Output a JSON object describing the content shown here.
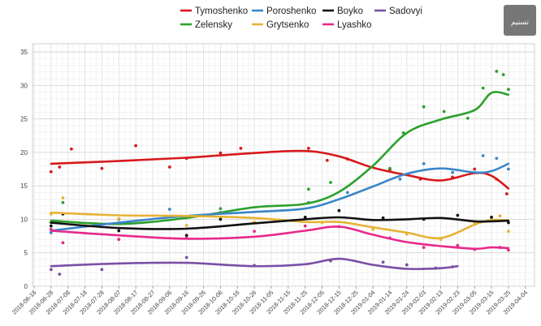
{
  "chart_data": {
    "type": "line",
    "title": "",
    "xlabel": "",
    "ylabel": "",
    "ylim": [
      0,
      35
    ],
    "yticks": [
      0,
      5,
      10,
      15,
      20,
      25,
      30,
      35
    ],
    "grid": true,
    "legend_position": "top",
    "x_tick_labels": [
      "2018-06-18",
      "2018-06-28",
      "2018-07-08",
      "2018-07-18",
      "2018-07-28",
      "2018-08-07",
      "2018-08-17",
      "2018-08-27",
      "2018-09-06",
      "2018-09-16",
      "2018-09-26",
      "2018-10-06",
      "2018-10-16",
      "2018-10-26",
      "2018-11-05",
      "2018-11-15",
      "2018-11-25",
      "2018-12-05",
      "2018-12-15",
      "2018-12-25",
      "2019-01-04",
      "2019-01-14",
      "2019-01-24",
      "2019-02-03",
      "2019-02-13",
      "2019-02-23",
      "2019-03-05",
      "2019-03-15",
      "2019-03-25",
      "2019-04-04"
    ],
    "series": [
      {
        "name": "Tymoshenko",
        "color": "#d7191c",
        "x": [
          "2018-06-28",
          "2018-08-07",
          "2018-09-16",
          "2018-10-26",
          "2018-11-25",
          "2018-12-15",
          "2019-01-04",
          "2019-01-24",
          "2019-02-13",
          "2019-03-05",
          "2019-03-15",
          "2019-03-25"
        ],
        "y": [
          18.3,
          18.7,
          19.2,
          19.9,
          20.2,
          19.4,
          17.7,
          16.6,
          15.8,
          16.9,
          16.5,
          14.6
        ],
        "points": [
          [
            "2018-06-28",
            17.1
          ],
          [
            "2018-07-03",
            17.8
          ],
          [
            "2018-07-10",
            20.5
          ],
          [
            "2018-07-28",
            17.6
          ],
          [
            "2018-08-17",
            21.0
          ],
          [
            "2018-09-06",
            17.8
          ],
          [
            "2018-09-16",
            19.1
          ],
          [
            "2018-10-06",
            19.9
          ],
          [
            "2018-10-18",
            20.6
          ],
          [
            "2018-11-27",
            20.6
          ],
          [
            "2018-12-08",
            18.8
          ],
          [
            "2018-12-20",
            19.0
          ],
          [
            "2019-01-14",
            17.4
          ],
          [
            "2019-02-01",
            16.0
          ],
          [
            "2019-02-20",
            16.3
          ],
          [
            "2019-03-05",
            17.5
          ],
          [
            "2019-03-18",
            16.0
          ],
          [
            "2019-03-24",
            13.8
          ]
        ]
      },
      {
        "name": "Zelensky",
        "color": "#2ca02c",
        "x": [
          "2018-06-28",
          "2018-08-07",
          "2018-09-16",
          "2018-10-26",
          "2018-11-25",
          "2018-12-15",
          "2019-01-04",
          "2019-01-24",
          "2019-02-13",
          "2019-03-05",
          "2019-03-15",
          "2019-03-25"
        ],
        "y": [
          9.8,
          9.3,
          10.2,
          11.8,
          12.3,
          14.1,
          18.0,
          22.9,
          24.9,
          26.3,
          28.9,
          28.6
        ],
        "points": [
          [
            "2018-06-28",
            9.5
          ],
          [
            "2018-07-05",
            12.5
          ],
          [
            "2018-08-07",
            10.0
          ],
          [
            "2018-09-06",
            10.4
          ],
          [
            "2018-10-06",
            11.6
          ],
          [
            "2018-11-27",
            14.5
          ],
          [
            "2018-12-10",
            15.5
          ],
          [
            "2019-01-14",
            17.6
          ],
          [
            "2019-01-22",
            22.9
          ],
          [
            "2019-02-03",
            26.8
          ],
          [
            "2019-02-15",
            26.1
          ],
          [
            "2019-03-01",
            25.1
          ],
          [
            "2019-03-10",
            29.6
          ],
          [
            "2019-03-18",
            32.1
          ],
          [
            "2019-03-22",
            31.6
          ],
          [
            "2019-03-25",
            29.4
          ]
        ]
      },
      {
        "name": "Poroshenko",
        "color": "#3a86c8",
        "x": [
          "2018-06-28",
          "2018-08-07",
          "2018-09-16",
          "2018-10-26",
          "2018-11-25",
          "2018-12-15",
          "2019-01-04",
          "2019-01-24",
          "2019-02-13",
          "2019-03-05",
          "2019-03-15",
          "2019-03-25"
        ],
        "y": [
          8.3,
          9.5,
          10.5,
          11.1,
          11.6,
          13.0,
          14.9,
          16.8,
          17.6,
          17.0,
          17.2,
          18.3
        ],
        "points": [
          [
            "2018-06-28",
            8.0
          ],
          [
            "2018-08-07",
            10.0
          ],
          [
            "2018-09-06",
            11.5
          ],
          [
            "2018-10-06",
            11.0
          ],
          [
            "2018-11-27",
            12.5
          ],
          [
            "2018-12-20",
            14.0
          ],
          [
            "2019-01-20",
            16.0
          ],
          [
            "2019-02-03",
            18.3
          ],
          [
            "2019-02-20",
            17.0
          ],
          [
            "2019-03-10",
            19.5
          ],
          [
            "2019-03-18",
            19.1
          ],
          [
            "2019-03-25",
            17.5
          ]
        ]
      },
      {
        "name": "Grytsenko",
        "color": "#e6b335",
        "x": [
          "2018-06-28",
          "2018-08-07",
          "2018-09-16",
          "2018-10-26",
          "2018-11-25",
          "2018-12-15",
          "2019-01-04",
          "2019-01-24",
          "2019-02-13",
          "2019-03-05",
          "2019-03-15",
          "2019-03-25"
        ],
        "y": [
          11.0,
          10.6,
          10.5,
          10.2,
          9.6,
          9.6,
          8.8,
          8.0,
          7.2,
          9.2,
          9.9,
          9.8
        ],
        "points": [
          [
            "2018-06-28",
            10.8
          ],
          [
            "2018-07-05",
            13.2
          ],
          [
            "2018-08-07",
            10.1
          ],
          [
            "2018-09-16",
            9.1
          ],
          [
            "2018-10-26",
            9.6
          ],
          [
            "2018-12-05",
            9.5
          ],
          [
            "2019-01-04",
            8.5
          ],
          [
            "2019-01-24",
            7.8
          ],
          [
            "2019-02-13",
            7.0
          ],
          [
            "2019-03-05",
            9.5
          ],
          [
            "2019-03-20",
            10.5
          ],
          [
            "2019-03-25",
            8.2
          ]
        ]
      },
      {
        "name": "Boyko",
        "color": "#111111",
        "x": [
          "2018-06-28",
          "2018-08-07",
          "2018-09-16",
          "2018-10-26",
          "2018-11-25",
          "2018-12-15",
          "2019-01-04",
          "2019-01-24",
          "2019-02-13",
          "2019-03-05",
          "2019-03-15",
          "2019-03-25"
        ],
        "y": [
          9.5,
          8.7,
          8.6,
          9.4,
          10.0,
          10.3,
          9.9,
          10.0,
          10.2,
          9.7,
          9.7,
          9.8
        ],
        "points": [
          [
            "2018-06-28",
            9.0
          ],
          [
            "2018-07-05",
            10.8
          ],
          [
            "2018-08-07",
            8.3
          ],
          [
            "2018-09-16",
            7.6
          ],
          [
            "2018-10-06",
            10.0
          ],
          [
            "2018-11-25",
            10.3
          ],
          [
            "2018-12-15",
            11.3
          ],
          [
            "2019-01-10",
            10.2
          ],
          [
            "2019-02-03",
            10.0
          ],
          [
            "2019-02-23",
            10.6
          ],
          [
            "2019-03-15",
            10.3
          ],
          [
            "2019-03-25",
            9.5
          ]
        ]
      },
      {
        "name": "Lyashko",
        "color": "#e7298a",
        "x": [
          "2018-06-28",
          "2018-08-07",
          "2018-09-16",
          "2018-10-26",
          "2018-11-25",
          "2018-12-15",
          "2019-01-04",
          "2019-01-24",
          "2019-02-13",
          "2019-03-05",
          "2019-03-15",
          "2019-03-25"
        ],
        "y": [
          8.3,
          7.6,
          7.1,
          7.4,
          8.3,
          8.9,
          7.7,
          6.6,
          6.0,
          5.6,
          5.8,
          5.7
        ],
        "points": [
          [
            "2018-06-28",
            8.5
          ],
          [
            "2018-07-05",
            6.5
          ],
          [
            "2018-08-07",
            7.0
          ],
          [
            "2018-09-16",
            7.2
          ],
          [
            "2018-10-26",
            8.2
          ],
          [
            "2018-11-25",
            9.0
          ],
          [
            "2018-12-15",
            8.9
          ],
          [
            "2019-01-14",
            7.2
          ],
          [
            "2019-02-03",
            5.8
          ],
          [
            "2019-02-23",
            6.1
          ],
          [
            "2019-03-05",
            5.5
          ],
          [
            "2019-03-20",
            5.8
          ],
          [
            "2019-03-25",
            5.4
          ]
        ]
      },
      {
        "name": "Sadovyi",
        "color": "#7b4fa6",
        "x": [
          "2018-06-28",
          "2018-08-07",
          "2018-09-16",
          "2018-10-26",
          "2018-11-25",
          "2018-12-15",
          "2019-01-04",
          "2019-01-24",
          "2019-02-13",
          "2019-02-23"
        ],
        "y": [
          3.0,
          3.4,
          3.5,
          3.0,
          3.3,
          4.1,
          3.2,
          2.6,
          2.7,
          3.0
        ],
        "points": [
          [
            "2018-06-28",
            2.5
          ],
          [
            "2018-07-03",
            1.8
          ],
          [
            "2018-07-28",
            2.5
          ],
          [
            "2018-09-16",
            4.3
          ],
          [
            "2018-10-26",
            3.1
          ],
          [
            "2018-12-10",
            3.8
          ],
          [
            "2019-01-10",
            3.6
          ],
          [
            "2019-01-24",
            3.2
          ],
          [
            "2019-02-10",
            2.7
          ],
          [
            "2019-02-20",
            2.9
          ]
        ]
      }
    ],
    "legend": [
      [
        "Tymoshenko",
        "Poroshenko",
        "Boyko",
        "Sadovyi"
      ],
      [
        "Zelensky",
        "Grytsenko",
        "Lyashko"
      ]
    ]
  },
  "watermark": {
    "label": "تسنیم"
  }
}
